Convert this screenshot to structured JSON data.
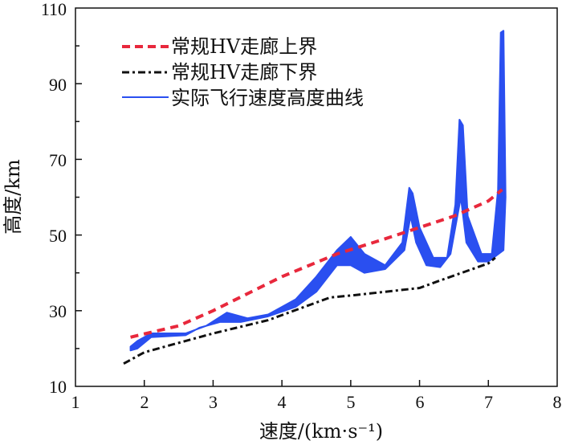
{
  "chart_data": {
    "type": "line",
    "xlabel": "速度/(km·s⁻¹)",
    "ylabel": "高度/km",
    "xlim": [
      1,
      8
    ],
    "ylim": [
      10,
      110
    ],
    "xticks": [
      "1",
      "2",
      "3",
      "4",
      "5",
      "6",
      "7",
      "8"
    ],
    "yticks": [
      "10",
      "30",
      "50",
      "70",
      "90",
      "110"
    ],
    "grid": false,
    "legend_position": "top-left",
    "colors": {
      "upper": "#e8283c",
      "lower": "#111111",
      "actual": "#2a4ff0"
    },
    "series": [
      {
        "name": "常规HV走廊上界",
        "style": "dashed",
        "x": [
          1.8,
          2.5,
          3.0,
          4.0,
          4.8,
          5.5,
          6.0,
          6.5,
          7.0,
          7.2
        ],
        "y": [
          23,
          26,
          30,
          39,
          45,
          49,
          52,
          55,
          59,
          62
        ]
      },
      {
        "name": "常规HV走廊下界",
        "style": "dash-dot",
        "x": [
          1.7,
          2.0,
          3.0,
          3.8,
          4.7,
          5.0,
          6.0,
          6.3,
          7.0,
          7.1
        ],
        "y": [
          16,
          19,
          24,
          27.5,
          33.5,
          34,
          36,
          38,
          42.5,
          44
        ]
      },
      {
        "name": "实际飞行速度高度曲线",
        "style": "band",
        "upper_x": [
          1.8,
          1.9,
          2.1,
          2.6,
          2.9,
          3.2,
          3.5,
          3.8,
          4.2,
          4.5,
          4.8,
          5.0,
          5.2,
          5.5,
          5.75,
          5.85,
          5.9,
          6.0,
          6.2,
          6.4,
          6.52,
          6.58,
          6.63,
          6.7,
          6.9,
          7.05,
          7.14,
          7.18,
          7.22,
          7.25
        ],
        "upper_y": [
          20.5,
          22,
          24,
          24,
          26,
          29.5,
          28,
          29,
          33,
          39,
          46,
          49.5,
          45,
          42,
          48,
          62.5,
          61,
          52,
          44,
          44,
          58,
          80.5,
          79,
          55,
          45,
          45,
          62,
          103.5,
          104,
          60
        ],
        "lower_x": [
          7.22,
          7.0,
          6.85,
          6.68,
          6.6,
          6.52,
          6.45,
          6.3,
          6.1,
          5.95,
          5.87,
          5.78,
          5.5,
          5.2,
          5.0,
          4.8,
          4.5,
          4.2,
          3.8,
          3.4,
          3.1,
          2.8,
          2.6,
          2.1,
          1.9,
          1.8
        ],
        "lower_y": [
          46,
          43,
          43,
          48,
          60,
          52,
          45,
          41.5,
          42,
          48,
          55,
          46,
          41,
          40,
          42,
          42,
          35,
          31,
          28.5,
          27,
          27,
          25.5,
          23.5,
          23,
          20,
          19.5
        ]
      }
    ]
  }
}
